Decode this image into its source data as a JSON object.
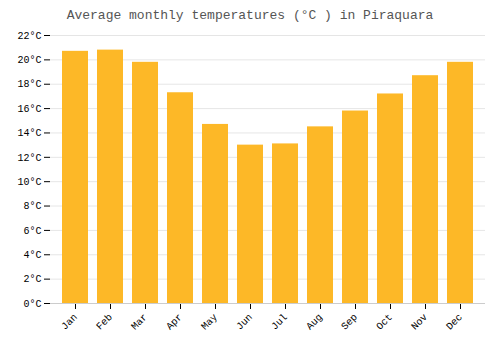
{
  "chart_data": {
    "type": "bar",
    "title": "Average monthly temperatures (°C ) in Piraquara",
    "categories": [
      "Jan",
      "Feb",
      "Mar",
      "Apr",
      "May",
      "Jun",
      "Jul",
      "Aug",
      "Sep",
      "Oct",
      "Nov",
      "Dec"
    ],
    "values": [
      20.7,
      20.8,
      19.8,
      17.3,
      14.7,
      13.0,
      13.1,
      14.5,
      15.8,
      17.2,
      18.7,
      19.8
    ],
    "color": "#FDB827",
    "ylim": [
      0,
      22
    ],
    "yticks": [
      {
        "value": 0,
        "label": "0°C"
      },
      {
        "value": 2,
        "label": "2°C"
      },
      {
        "value": 4,
        "label": "4°C"
      },
      {
        "value": 6,
        "label": "6°C"
      },
      {
        "value": 8,
        "label": "8°C"
      },
      {
        "value": 10,
        "label": "10°C"
      },
      {
        "value": 12,
        "label": "12°C"
      },
      {
        "value": 14,
        "label": "14°C"
      },
      {
        "value": 16,
        "label": "16°C"
      },
      {
        "value": 18,
        "label": "18°C"
      },
      {
        "value": 20,
        "label": "20°C"
      },
      {
        "value": 22,
        "label": "22°C"
      }
    ],
    "grid": true
  }
}
